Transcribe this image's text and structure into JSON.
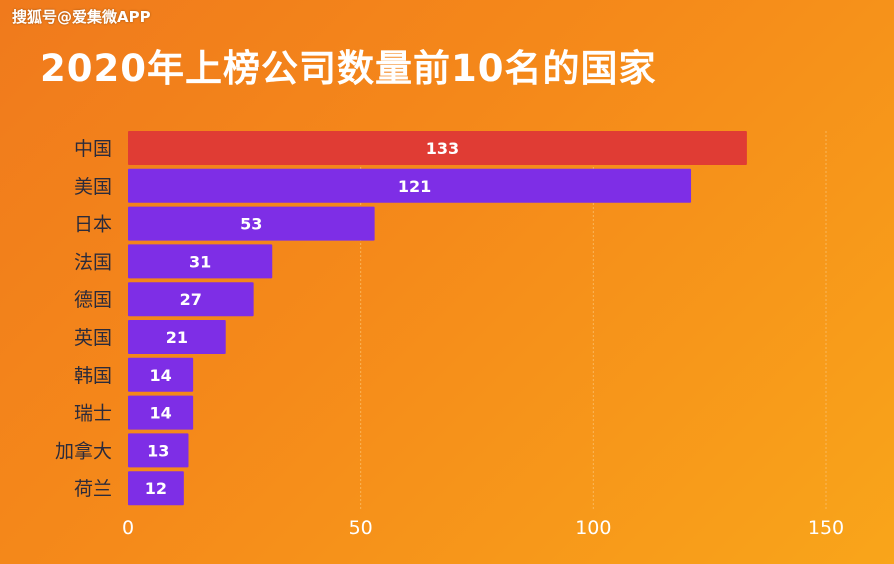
{
  "watermark": "搜狐号@爱集微APP",
  "chart_data": {
    "type": "bar",
    "orientation": "horizontal",
    "title": "2020年上榜公司数量前10名的国家",
    "categories": [
      "中国",
      "美国",
      "日本",
      "法国",
      "德国",
      "英国",
      "韩国",
      "瑞士",
      "加拿大",
      "荷兰"
    ],
    "values": [
      133,
      121,
      53,
      31,
      27,
      21,
      14,
      14,
      13,
      12
    ],
    "xlim": [
      0,
      150
    ],
    "xticks": [
      0,
      50,
      100,
      150
    ],
    "grid": true,
    "colors": {
      "highlight": "#e03c34",
      "bar": "#7e2ee6",
      "grid": "#fbbf6a"
    },
    "highlight_index": 0
  }
}
